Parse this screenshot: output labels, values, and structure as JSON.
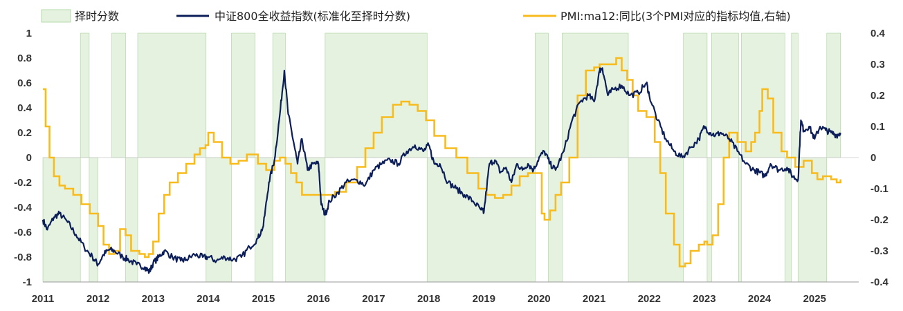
{
  "chart_data": {
    "type": "line",
    "title": "",
    "legend": [
      {
        "key": "timing",
        "label": "择时分数",
        "kind": "area",
        "color": "#e5f2e0"
      },
      {
        "key": "csi800",
        "label": "中证800全收益指数(标准化至择时分数)",
        "kind": "line",
        "color": "#0c1e5a"
      },
      {
        "key": "pmi",
        "label": "PMI:ma12:同比(3个PMI对应的指标均值,右轴)",
        "kind": "line",
        "color": "#f8bb1c"
      }
    ],
    "x_range": [
      2011.0,
      2025.8
    ],
    "x_ticks": [
      "2011",
      "2012",
      "2013",
      "2014",
      "2015",
      "2016",
      "2017",
      "2018",
      "2019",
      "2020",
      "2021",
      "2022",
      "2023",
      "2024",
      "2025"
    ],
    "left_axis": {
      "range": [
        -1,
        1
      ],
      "ticks": [
        "1",
        "0.8",
        "0.6",
        "0.4",
        "0.2",
        "0",
        "-0.2",
        "-0.4",
        "-0.6",
        "-0.8",
        "-1"
      ]
    },
    "right_axis": {
      "range": [
        -0.4,
        0.4
      ],
      "ticks": [
        "0.4",
        "0.3",
        "0.2",
        "0.1",
        "0",
        "-0.1",
        "-0.2",
        "-0.3",
        "-0.4"
      ]
    },
    "timing_score": {
      "values": [
        1,
        -1
      ],
      "positive_periods": [
        [
          2011.68,
          2011.84
        ],
        [
          2012.25,
          2012.5
        ],
        [
          2012.72,
          2013.96
        ],
        [
          2014.42,
          2014.85
        ],
        [
          2015.17,
          2015.4
        ],
        [
          2016.12,
          2017.97
        ],
        [
          2019.93,
          2020.17
        ],
        [
          2020.42,
          2021.62
        ],
        [
          2022.62,
          2023.05
        ],
        [
          2023.13,
          2023.62
        ],
        [
          2023.67,
          2024.46
        ],
        [
          2024.58,
          2024.7
        ],
        [
          2025.22,
          2025.47
        ]
      ],
      "negative_periods": [
        [
          2011.0,
          2011.68
        ],
        [
          2011.84,
          2012.0
        ],
        [
          2012.5,
          2012.72
        ],
        [
          2013.96,
          2014.42
        ],
        [
          2014.85,
          2015.17
        ],
        [
          2015.4,
          2016.12
        ],
        [
          2017.97,
          2019.93
        ],
        [
          2020.17,
          2020.42
        ],
        [
          2021.62,
          2022.62
        ],
        [
          2023.05,
          2023.13
        ],
        [
          2023.62,
          2023.67
        ],
        [
          2024.46,
          2024.58
        ],
        [
          2024.7,
          2025.22
        ]
      ]
    },
    "csi800": {
      "axis": "left",
      "x": [
        2011.0,
        2011.08,
        2011.2,
        2011.3,
        2011.45,
        2011.6,
        2011.75,
        2011.9,
        2012.0,
        2012.1,
        2012.2,
        2012.3,
        2012.45,
        2012.55,
        2012.7,
        2012.85,
        2012.93,
        2013.0,
        2013.1,
        2013.2,
        2013.35,
        2013.5,
        2013.6,
        2013.75,
        2013.9,
        2014.0,
        2014.15,
        2014.3,
        2014.45,
        2014.6,
        2014.75,
        2014.9,
        2015.0,
        2015.1,
        2015.2,
        2015.3,
        2015.38,
        2015.45,
        2015.55,
        2015.62,
        2015.7,
        2015.8,
        2015.9,
        2016.0,
        2016.05,
        2016.12,
        2016.2,
        2016.35,
        2016.5,
        2016.7,
        2016.85,
        2017.0,
        2017.15,
        2017.3,
        2017.45,
        2017.6,
        2017.75,
        2017.9,
        2018.0,
        2018.1,
        2018.2,
        2018.35,
        2018.5,
        2018.65,
        2018.8,
        2018.95,
        2019.0,
        2019.1,
        2019.2,
        2019.3,
        2019.4,
        2019.5,
        2019.6,
        2019.7,
        2019.8,
        2019.9,
        2020.0,
        2020.1,
        2020.2,
        2020.3,
        2020.45,
        2020.6,
        2020.75,
        2020.9,
        2021.0,
        2021.1,
        2021.15,
        2021.25,
        2021.35,
        2021.5,
        2021.65,
        2021.8,
        2021.95,
        2022.0,
        2022.15,
        2022.3,
        2022.45,
        2022.6,
        2022.75,
        2022.9,
        2023.0,
        2023.1,
        2023.2,
        2023.3,
        2023.45,
        2023.6,
        2023.75,
        2023.9,
        2024.0,
        2024.1,
        2024.2,
        2024.35,
        2024.5,
        2024.6,
        2024.7,
        2024.75,
        2024.8,
        2024.9,
        2025.0,
        2025.1,
        2025.2,
        2025.3,
        2025.4,
        2025.47
      ],
      "y": [
        -0.5,
        -0.58,
        -0.48,
        -0.45,
        -0.52,
        -0.62,
        -0.72,
        -0.8,
        -0.86,
        -0.78,
        -0.74,
        -0.75,
        -0.8,
        -0.82,
        -0.86,
        -0.88,
        -0.92,
        -0.85,
        -0.8,
        -0.75,
        -0.8,
        -0.83,
        -0.82,
        -0.78,
        -0.8,
        -0.8,
        -0.83,
        -0.8,
        -0.82,
        -0.8,
        -0.72,
        -0.65,
        -0.55,
        -0.2,
        -0.02,
        0.35,
        0.7,
        0.35,
        0.12,
        -0.05,
        0.15,
        -0.1,
        -0.05,
        -0.05,
        -0.38,
        -0.46,
        -0.35,
        -0.28,
        -0.2,
        -0.18,
        -0.22,
        -0.1,
        -0.05,
        -0.02,
        -0.05,
        0.05,
        0.1,
        0.05,
        0.1,
        -0.05,
        -0.05,
        -0.2,
        -0.25,
        -0.3,
        -0.35,
        -0.42,
        -0.44,
        -0.05,
        -0.02,
        -0.12,
        -0.08,
        -0.2,
        -0.05,
        -0.1,
        -0.05,
        -0.1,
        0.0,
        0.05,
        -0.05,
        -0.1,
        0.05,
        0.3,
        0.45,
        0.5,
        0.45,
        0.7,
        0.72,
        0.5,
        0.55,
        0.58,
        0.5,
        0.52,
        0.6,
        0.5,
        0.3,
        0.15,
        0.05,
        0.0,
        0.08,
        0.15,
        0.25,
        0.2,
        0.18,
        0.2,
        0.15,
        0.05,
        -0.05,
        -0.1,
        -0.12,
        -0.15,
        -0.05,
        -0.1,
        -0.08,
        -0.15,
        -0.18,
        0.3,
        0.22,
        0.25,
        0.15,
        0.25,
        0.22,
        0.2,
        0.18,
        0.2
      ]
    },
    "pmi": {
      "axis": "right",
      "x": [
        2011.0,
        2011.05,
        2011.12,
        2011.2,
        2011.3,
        2011.4,
        2011.55,
        2011.7,
        2011.85,
        2012.0,
        2012.1,
        2012.2,
        2012.3,
        2012.4,
        2012.5,
        2012.6,
        2012.75,
        2012.85,
        2012.92,
        2013.0,
        2013.1,
        2013.2,
        2013.3,
        2013.45,
        2013.6,
        2013.75,
        2013.85,
        2013.95,
        2014.0,
        2014.1,
        2014.25,
        2014.4,
        2014.55,
        2014.7,
        2014.9,
        2015.05,
        2015.2,
        2015.3,
        2015.4,
        2015.5,
        2015.6,
        2015.7,
        2015.85,
        2016.0,
        2016.15,
        2016.3,
        2016.5,
        2016.7,
        2016.85,
        2017.0,
        2017.15,
        2017.35,
        2017.5,
        2017.65,
        2017.8,
        2017.95,
        2018.1,
        2018.3,
        2018.5,
        2018.7,
        2018.9,
        2019.05,
        2019.2,
        2019.35,
        2019.5,
        2019.65,
        2019.8,
        2019.95,
        2020.05,
        2020.1,
        2020.2,
        2020.3,
        2020.4,
        2020.55,
        2020.7,
        2020.85,
        2021.0,
        2021.1,
        2021.25,
        2021.4,
        2021.5,
        2021.6,
        2021.7,
        2021.8,
        2021.95,
        2022.1,
        2022.2,
        2022.3,
        2022.45,
        2022.55,
        2022.65,
        2022.75,
        2022.9,
        2023.0,
        2023.05,
        2023.15,
        2023.25,
        2023.35,
        2023.45,
        2023.6,
        2023.75,
        2023.85,
        2023.92,
        2024.0,
        2024.05,
        2024.15,
        2024.25,
        2024.4,
        2024.5,
        2024.65,
        2024.8,
        2024.95,
        2025.05,
        2025.15,
        2025.3,
        2025.4,
        2025.47
      ],
      "y": [
        0.22,
        0.1,
        0.0,
        -0.06,
        -0.09,
        -0.1,
        -0.12,
        -0.15,
        -0.18,
        -0.22,
        -0.28,
        -0.31,
        -0.3,
        -0.23,
        -0.25,
        -0.3,
        -0.31,
        -0.32,
        -0.31,
        -0.27,
        -0.18,
        -0.12,
        -0.08,
        -0.05,
        -0.02,
        0.01,
        0.03,
        0.04,
        0.08,
        0.05,
        0.0,
        -0.02,
        -0.01,
        0.01,
        -0.02,
        -0.04,
        -0.01,
        0.0,
        -0.02,
        -0.05,
        -0.08,
        -0.12,
        -0.12,
        -0.12,
        -0.12,
        -0.11,
        -0.08,
        -0.03,
        0.03,
        0.08,
        0.13,
        0.17,
        0.18,
        0.17,
        0.15,
        0.12,
        0.07,
        0.03,
        0.0,
        -0.05,
        -0.1,
        -0.12,
        -0.13,
        -0.12,
        -0.09,
        -0.06,
        -0.05,
        -0.05,
        -0.18,
        -0.2,
        -0.17,
        -0.12,
        -0.08,
        0.0,
        0.2,
        0.28,
        0.29,
        0.3,
        0.3,
        0.32,
        0.28,
        0.25,
        0.2,
        0.15,
        0.13,
        0.05,
        -0.05,
        -0.18,
        -0.28,
        -0.35,
        -0.34,
        -0.3,
        -0.28,
        -0.27,
        -0.28,
        -0.25,
        -0.15,
        0.0,
        0.08,
        0.05,
        0.02,
        0.05,
        0.08,
        0.15,
        0.22,
        0.19,
        0.08,
        0.02,
        0.0,
        -0.03,
        -0.01,
        -0.05,
        -0.07,
        -0.06,
        -0.07,
        -0.08,
        -0.07
      ]
    }
  }
}
